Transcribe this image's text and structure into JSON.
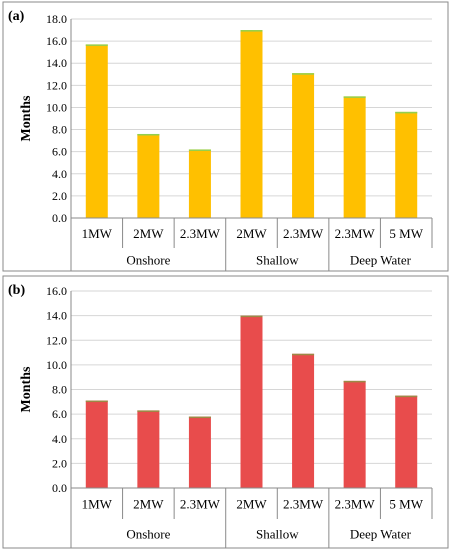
{
  "chart_data": [
    {
      "type": "bar",
      "panel_label": "(a)",
      "ylabel": "Months",
      "ylim": [
        0,
        18
      ],
      "yticks": [
        "0.0",
        "2.0",
        "4.0",
        "6.0",
        "8.0",
        "10.0",
        "12.0",
        "14.0",
        "16.0",
        "18.0"
      ],
      "grid": true,
      "categories": [
        "1MW",
        "2MW",
        "2.3MW",
        "2MW",
        "2.3MW",
        "2.3MW",
        "5 MW"
      ],
      "groups": [
        {
          "name": "Onshore",
          "span": 3
        },
        {
          "name": "Shallow",
          "span": 2
        },
        {
          "name": "Deep Water",
          "span": 2
        }
      ],
      "values": [
        15.7,
        7.6,
        6.2,
        17.0,
        13.1,
        11.0,
        9.6
      ],
      "bar_color": "#ffc000",
      "accent_color": "#92d050"
    },
    {
      "type": "bar",
      "panel_label": "(b)",
      "ylabel": "Months",
      "ylim": [
        0,
        16
      ],
      "yticks": [
        "0.0",
        "2.0",
        "4.0",
        "6.0",
        "8.0",
        "10.0",
        "12.0",
        "14.0",
        "16.0"
      ],
      "grid": true,
      "categories": [
        "1MW",
        "2MW",
        "2.3MW",
        "2MW",
        "2.3MW",
        "2.3MW",
        "5 MW"
      ],
      "groups": [
        {
          "name": "Onshore",
          "span": 3
        },
        {
          "name": "Shallow",
          "span": 2
        },
        {
          "name": "Deep Water",
          "span": 2
        }
      ],
      "values": [
        7.1,
        6.3,
        5.8,
        14.0,
        10.9,
        8.7,
        7.5
      ],
      "bar_color": "#e84c4c",
      "accent_color": "#9b8a46"
    }
  ]
}
